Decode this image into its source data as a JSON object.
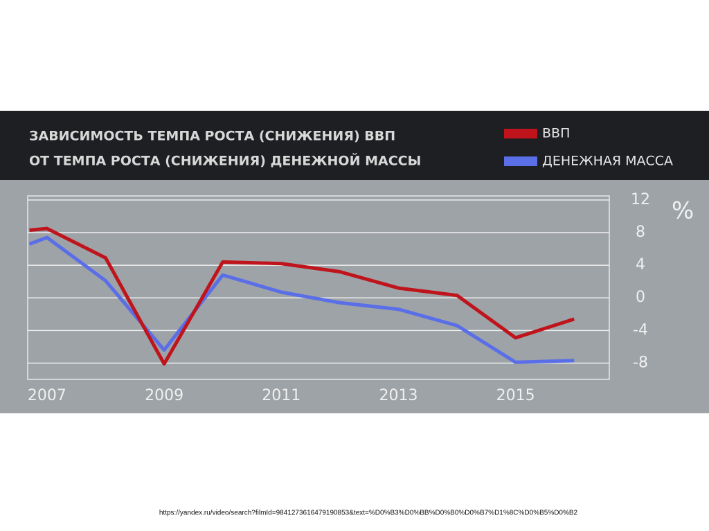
{
  "chart_data": {
    "type": "line",
    "title": [
      "ЗАВИСИМОСТЬ ТЕМПА РОСТА (СНИЖЕНИЯ) ВВП",
      "ОТ ТЕМПА РОСТА (СНИЖЕНИЯ) ДЕНЕЖНОЙ МАССЫ"
    ],
    "y_unit": "%",
    "x": [
      2006.7,
      2007,
      2008,
      2009,
      2010,
      2011,
      2012,
      2013,
      2014,
      2015,
      2016
    ],
    "series": [
      {
        "name": "ВВП",
        "color": "#c0141c",
        "values": [
          8.3,
          8.5,
          4.9,
          -8.1,
          4.4,
          4.2,
          3.2,
          1.2,
          0.3,
          -4.9,
          -2.6
        ]
      },
      {
        "name": "ДЕНЕЖНАЯ МАССА",
        "color": "#5a6ee8",
        "values": [
          6.6,
          7.4,
          2.1,
          -6.4,
          2.8,
          0.7,
          -0.6,
          -1.4,
          -3.4,
          -7.9,
          -7.7
        ]
      }
    ],
    "xlim": [
      2006.67,
      2016.6
    ],
    "xticks": [
      2007,
      2009,
      2011,
      2013,
      2015
    ],
    "ylim": [
      -10,
      12.5
    ],
    "yticks": [
      12,
      8,
      4,
      0,
      -4,
      -8
    ],
    "grid": true
  },
  "source_url": "https://yandex.ru/video/search?filmId=9841273616479190853&text=%D0%B3%D0%BB%D0%B0%D0%B7%D1%8C%D0%B5%D0%B2"
}
